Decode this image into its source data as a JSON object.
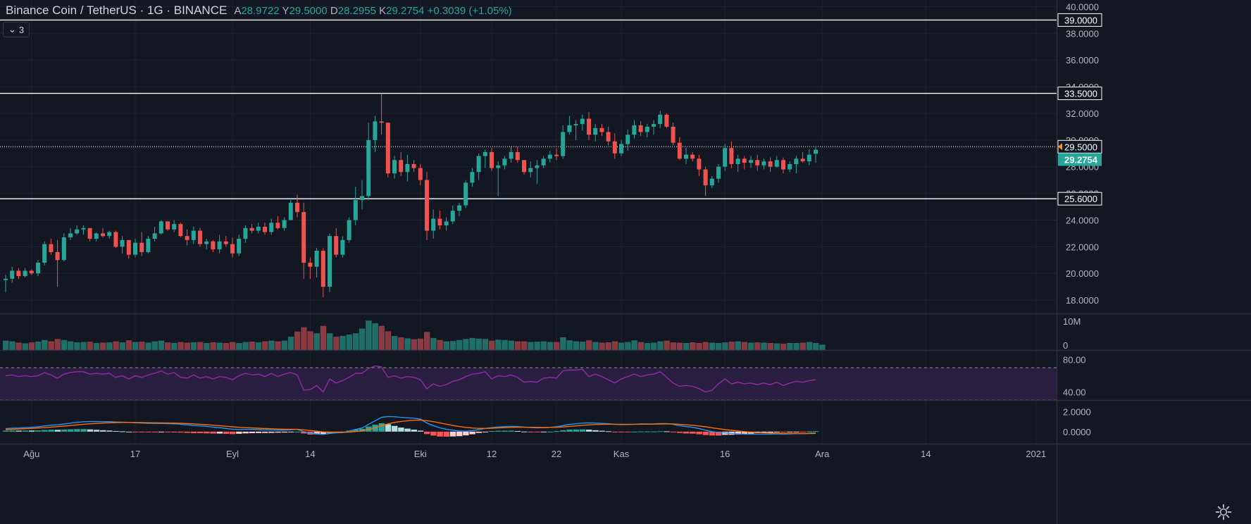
{
  "header": {
    "symbol": "Binance Coin / TetherUS · 1G · BINANCE",
    "open_label": "A",
    "open": "28.9722",
    "high_label": "Y",
    "high": "29.5000",
    "low_label": "D",
    "low": "28.2955",
    "close_label": "K",
    "close": "29.2754",
    "change": "+0.3039 (+1.05%)",
    "collapsed_count": "3"
  },
  "colors": {
    "background": "#131722",
    "grid": "#1e2230",
    "up": "#26a69a",
    "down": "#ef5350",
    "rsi_line": "#9c27b0",
    "rsi_band": "#2a1f40",
    "macd": "#2196f3",
    "signal": "#ff6d00",
    "hline": "#ffffff",
    "last_price_badge": "#26a69a",
    "marker": "#ff9800"
  },
  "chart_data": {
    "type": "candlestick",
    "price_axis": {
      "range": [
        17.0,
        40.5
      ],
      "ticks": [
        "40.0000",
        "38.0000",
        "36.0000",
        "34.0000",
        "32.0000",
        "30.0000",
        "28.0000",
        "26.0000",
        "24.0000",
        "22.0000",
        "20.0000",
        "18.0000"
      ]
    },
    "horizontal_lines": [
      {
        "value": 39.0,
        "label": "39.0000"
      },
      {
        "value": 33.5,
        "label": "33.5000"
      },
      {
        "value": 29.5,
        "label": "29.5000",
        "style": "dotted"
      },
      {
        "value": 25.6,
        "label": "25.6000"
      }
    ],
    "last_price": {
      "value": 29.2754,
      "label": "29.2754"
    },
    "x_axis_labels": [
      {
        "index": 4,
        "label": "Ağu"
      },
      {
        "index": 20,
        "label": "17"
      },
      {
        "index": 35,
        "label": "Eyl"
      },
      {
        "index": 47,
        "label": "14"
      },
      {
        "index": 64,
        "label": "Eki"
      },
      {
        "index": 75,
        "label": "12"
      },
      {
        "index": 85,
        "label": "22"
      },
      {
        "index": 95,
        "label": "Kas"
      },
      {
        "index": 111,
        "label": "16"
      },
      {
        "index": 126,
        "label": "Ara"
      },
      {
        "index": 142,
        "label": "14"
      },
      {
        "index": 159,
        "label": "2021"
      }
    ],
    "total_slots": 163,
    "ohlc": [
      [
        19.5,
        19.9,
        18.6,
        19.6
      ],
      [
        19.6,
        20.5,
        19.3,
        20.2
      ],
      [
        20.2,
        20.4,
        19.6,
        19.8
      ],
      [
        19.8,
        20.4,
        19.7,
        20.2
      ],
      [
        20.2,
        20.3,
        19.9,
        20.0
      ],
      [
        20.0,
        21.0,
        19.8,
        20.8
      ],
      [
        20.8,
        22.4,
        20.6,
        22.2
      ],
      [
        22.2,
        22.6,
        21.4,
        21.6
      ],
      [
        21.6,
        22.5,
        19.0,
        21.0
      ],
      [
        21.0,
        23.0,
        20.9,
        22.7
      ],
      [
        22.7,
        23.4,
        22.5,
        23.0
      ],
      [
        23.0,
        23.6,
        22.9,
        23.3
      ],
      [
        23.3,
        23.6,
        22.9,
        23.4
      ],
      [
        23.4,
        23.4,
        22.4,
        22.6
      ],
      [
        22.6,
        23.1,
        22.4,
        23.0
      ],
      [
        23.0,
        23.4,
        22.7,
        22.8
      ],
      [
        22.8,
        23.2,
        22.6,
        23.1
      ],
      [
        23.1,
        23.2,
        21.9,
        22.0
      ],
      [
        22.0,
        22.8,
        21.5,
        22.5
      ],
      [
        22.5,
        22.5,
        21.1,
        21.4
      ],
      [
        21.4,
        22.6,
        21.2,
        22.3
      ],
      [
        22.3,
        23.1,
        21.3,
        21.6
      ],
      [
        21.6,
        22.8,
        21.5,
        22.6
      ],
      [
        22.6,
        23.5,
        22.4,
        23.0
      ],
      [
        23.0,
        24.0,
        22.9,
        23.9
      ],
      [
        23.9,
        23.9,
        23.2,
        23.3
      ],
      [
        23.3,
        24.0,
        23.1,
        23.7
      ],
      [
        23.7,
        23.8,
        22.7,
        22.8
      ],
      [
        22.8,
        23.3,
        22.1,
        22.5
      ],
      [
        22.5,
        23.5,
        22.2,
        23.2
      ],
      [
        23.2,
        23.4,
        22.0,
        22.2
      ],
      [
        22.2,
        22.6,
        21.8,
        22.4
      ],
      [
        22.4,
        22.5,
        21.6,
        21.8
      ],
      [
        21.8,
        22.9,
        21.5,
        22.4
      ],
      [
        22.4,
        22.8,
        22.0,
        22.2
      ],
      [
        22.2,
        22.7,
        21.2,
        21.5
      ],
      [
        21.5,
        22.9,
        21.3,
        22.6
      ],
      [
        22.6,
        23.6,
        22.3,
        23.4
      ],
      [
        23.4,
        23.7,
        23.0,
        23.2
      ],
      [
        23.2,
        23.8,
        23.0,
        23.5
      ],
      [
        23.5,
        23.8,
        22.9,
        23.1
      ],
      [
        23.1,
        24.1,
        22.9,
        23.8
      ],
      [
        23.8,
        24.3,
        23.3,
        23.4
      ],
      [
        23.4,
        24.2,
        23.2,
        24.0
      ],
      [
        24.0,
        25.5,
        24.1,
        25.3
      ],
      [
        25.3,
        25.9,
        24.2,
        24.6
      ],
      [
        24.6,
        25.3,
        19.6,
        20.8
      ],
      [
        20.8,
        21.2,
        19.6,
        20.5
      ],
      [
        20.5,
        21.9,
        19.7,
        21.7
      ],
      [
        21.7,
        21.9,
        18.2,
        19.0
      ],
      [
        19.0,
        23.0,
        18.6,
        22.8
      ],
      [
        22.8,
        23.4,
        21.2,
        21.4
      ],
      [
        21.4,
        22.8,
        21.2,
        22.5
      ],
      [
        22.5,
        24.2,
        22.3,
        24.0
      ],
      [
        24.0,
        26.5,
        23.6,
        25.5
      ],
      [
        25.5,
        27.0,
        24.8,
        25.8
      ],
      [
        25.8,
        31.3,
        25.5,
        30.0
      ],
      [
        30.0,
        31.8,
        29.1,
        31.4
      ],
      [
        31.4,
        33.5,
        30.4,
        31.3
      ],
      [
        31.3,
        31.3,
        27.2,
        27.5
      ],
      [
        27.5,
        28.8,
        27.1,
        28.5
      ],
      [
        28.5,
        29.1,
        27.3,
        27.6
      ],
      [
        27.6,
        28.9,
        26.9,
        28.2
      ],
      [
        28.2,
        28.5,
        27.6,
        27.9
      ],
      [
        27.9,
        28.2,
        26.6,
        27.0
      ],
      [
        27.0,
        27.6,
        22.5,
        23.2
      ],
      [
        23.2,
        24.8,
        22.6,
        24.1
      ],
      [
        24.1,
        24.7,
        23.3,
        23.6
      ],
      [
        23.6,
        24.2,
        23.2,
        23.9
      ],
      [
        23.9,
        25.1,
        23.7,
        24.7
      ],
      [
        24.7,
        25.3,
        24.3,
        25.1
      ],
      [
        25.1,
        27.0,
        24.9,
        26.8
      ],
      [
        26.8,
        27.9,
        26.5,
        27.6
      ],
      [
        27.6,
        29.0,
        27.0,
        28.8
      ],
      [
        28.8,
        29.3,
        27.9,
        29.1
      ],
      [
        29.1,
        29.4,
        27.7,
        27.9
      ],
      [
        27.9,
        28.4,
        25.8,
        28.1
      ],
      [
        28.1,
        28.8,
        27.8,
        28.6
      ],
      [
        28.6,
        29.5,
        28.3,
        29.1
      ],
      [
        29.1,
        29.5,
        28.3,
        28.5
      ],
      [
        28.5,
        28.5,
        27.4,
        27.6
      ],
      [
        27.6,
        28.4,
        27.2,
        27.9
      ],
      [
        27.9,
        28.5,
        26.7,
        28.1
      ],
      [
        28.1,
        28.8,
        27.9,
        28.6
      ],
      [
        28.6,
        29.2,
        28.3,
        28.9
      ],
      [
        28.9,
        29.4,
        28.5,
        28.8
      ],
      [
        28.8,
        31.1,
        28.6,
        30.6
      ],
      [
        30.6,
        31.8,
        30.4,
        31.1
      ],
      [
        31.1,
        31.5,
        30.0,
        31.2
      ],
      [
        31.2,
        31.9,
        30.7,
        31.6
      ],
      [
        31.6,
        32.1,
        30.0,
        30.4
      ],
      [
        30.4,
        31.2,
        29.9,
        30.9
      ],
      [
        30.9,
        31.2,
        30.3,
        30.6
      ],
      [
        30.6,
        31.0,
        29.6,
        29.9
      ],
      [
        29.9,
        30.5,
        28.6,
        29.0
      ],
      [
        29.0,
        30.0,
        28.8,
        29.7
      ],
      [
        29.7,
        30.8,
        29.2,
        30.4
      ],
      [
        30.4,
        31.5,
        30.1,
        31.1
      ],
      [
        31.1,
        31.4,
        30.3,
        30.6
      ],
      [
        30.6,
        31.2,
        30.2,
        31.0
      ],
      [
        31.0,
        31.5,
        30.4,
        31.2
      ],
      [
        31.2,
        32.2,
        30.9,
        31.9
      ],
      [
        31.9,
        32.0,
        30.9,
        31.0
      ],
      [
        31.0,
        31.3,
        29.6,
        29.8
      ],
      [
        29.8,
        30.2,
        28.5,
        28.6
      ],
      [
        28.6,
        29.4,
        28.2,
        28.9
      ],
      [
        28.9,
        29.1,
        28.4,
        28.6
      ],
      [
        28.6,
        28.9,
        27.3,
        27.8
      ],
      [
        27.8,
        28.0,
        25.8,
        26.6
      ],
      [
        26.6,
        27.3,
        26.4,
        27.1
      ],
      [
        27.1,
        28.2,
        26.8,
        28.0
      ],
      [
        28.0,
        29.7,
        27.7,
        29.4
      ],
      [
        29.4,
        29.9,
        27.9,
        28.2
      ],
      [
        28.2,
        28.9,
        27.6,
        28.6
      ],
      [
        28.6,
        28.8,
        27.8,
        28.3
      ],
      [
        28.3,
        28.8,
        27.9,
        28.5
      ],
      [
        28.5,
        28.9,
        27.7,
        28.1
      ],
      [
        28.1,
        28.6,
        27.8,
        28.4
      ],
      [
        28.4,
        28.7,
        27.6,
        28.0
      ],
      [
        28.0,
        28.8,
        27.9,
        28.5
      ],
      [
        28.5,
        28.7,
        27.5,
        27.8
      ],
      [
        27.8,
        28.4,
        27.6,
        28.2
      ],
      [
        28.2,
        28.8,
        27.5,
        28.6
      ],
      [
        28.6,
        29.1,
        28.3,
        28.4
      ],
      [
        28.4,
        29.3,
        28.1,
        28.9
      ],
      [
        28.97,
        29.5,
        28.2955,
        29.2754
      ]
    ],
    "volume": {
      "label_top": "10M",
      "label_zero": "0",
      "max": 10.5,
      "values": [
        2.8,
        2.6,
        2.2,
        2.0,
        2.3,
        2.5,
        3.0,
        2.6,
        3.3,
        3.0,
        2.6,
        2.3,
        2.4,
        2.5,
        2.1,
        2.2,
        2.3,
        2.6,
        2.3,
        2.9,
        2.4,
        2.5,
        2.2,
        2.6,
        2.8,
        2.3,
        2.1,
        2.4,
        2.2,
        2.3,
        2.4,
        2.1,
        2.3,
        2.2,
        2.1,
        2.4,
        2.1,
        2.4,
        2.5,
        2.3,
        2.6,
        2.8,
        2.6,
        2.8,
        4.0,
        5.5,
        6.8,
        5.6,
        5.0,
        7.2,
        5.0,
        4.0,
        4.2,
        4.6,
        5.0,
        6.4,
        8.8,
        8.0,
        7.2,
        5.6,
        4.2,
        3.8,
        3.5,
        3.2,
        3.4,
        5.4,
        3.6,
        3.0,
        2.6,
        2.7,
        3.0,
        3.3,
        3.6,
        3.4,
        3.3,
        2.8,
        3.1,
        3.0,
        2.8,
        2.6,
        2.6,
        2.4,
        2.5,
        2.6,
        2.4,
        2.4,
        3.8,
        2.9,
        2.6,
        2.5,
        2.9,
        2.4,
        2.2,
        2.3,
        2.6,
        2.2,
        2.4,
        2.9,
        2.4,
        2.1,
        2.2,
        2.6,
        2.8,
        2.3,
        2.2,
        2.1,
        2.3,
        2.1,
        2.4,
        2.2,
        2.1,
        2.3,
        2.5,
        2.6,
        2.4,
        2.2,
        2.3,
        2.2,
        2.1,
        2.0,
        1.9,
        2.1,
        2.1,
        2.2,
        2.4,
        2.1,
        1.6
      ]
    },
    "rsi": {
      "range": [
        30,
        90
      ],
      "band": [
        30,
        70
      ],
      "ticks": [
        "80.00",
        "40.00"
      ],
      "values": [
        60,
        61,
        59,
        60,
        59,
        60,
        64,
        61,
        57,
        62,
        64,
        65,
        65,
        62,
        63,
        62,
        63,
        58,
        60,
        56,
        60,
        58,
        61,
        63,
        66,
        62,
        64,
        58,
        57,
        61,
        57,
        59,
        56,
        59,
        58,
        55,
        60,
        63,
        61,
        62,
        59,
        63,
        59,
        62,
        64,
        61,
        42,
        43,
        48,
        40,
        56,
        51,
        54,
        58,
        63,
        63,
        69,
        72,
        71,
        58,
        60,
        57,
        59,
        58,
        55,
        44,
        50,
        47,
        49,
        53,
        55,
        59,
        62,
        63,
        65,
        56,
        60,
        59,
        61,
        58,
        52,
        53,
        52,
        57,
        58,
        57,
        66,
        67,
        67,
        68,
        59,
        62,
        59,
        55,
        51,
        56,
        59,
        62,
        59,
        61,
        62,
        65,
        58,
        51,
        47,
        48,
        47,
        44,
        40,
        42,
        50,
        56,
        50,
        52,
        50,
        51,
        49,
        51,
        49,
        52,
        48,
        51,
        53,
        52,
        54,
        55
      ]
    },
    "macd": {
      "range": [
        -1.2,
        3.0
      ],
      "ticks": [
        "2.0000",
        "0.0000"
      ],
      "macd": [
        0.3,
        0.34,
        0.36,
        0.4,
        0.43,
        0.48,
        0.56,
        0.64,
        0.68,
        0.76,
        0.84,
        0.92,
        0.98,
        1.0,
        1.0,
        0.99,
        0.99,
        0.96,
        0.94,
        0.91,
        0.88,
        0.85,
        0.83,
        0.82,
        0.82,
        0.8,
        0.77,
        0.74,
        0.68,
        0.62,
        0.58,
        0.52,
        0.45,
        0.4,
        0.32,
        0.24,
        0.22,
        0.23,
        0.22,
        0.2,
        0.18,
        0.17,
        0.16,
        0.15,
        0.19,
        0.23,
        0.0,
        -0.18,
        -0.22,
        -0.28,
        -0.18,
        -0.12,
        -0.09,
        0.05,
        0.22,
        0.36,
        0.72,
        1.08,
        1.42,
        1.5,
        1.48,
        1.42,
        1.38,
        1.33,
        1.25,
        0.85,
        0.6,
        0.38,
        0.24,
        0.14,
        0.06,
        0.05,
        0.1,
        0.2,
        0.32,
        0.4,
        0.46,
        0.5,
        0.52,
        0.5,
        0.45,
        0.41,
        0.38,
        0.39,
        0.42,
        0.48,
        0.6,
        0.72,
        0.78,
        0.85,
        0.87,
        0.85,
        0.82,
        0.78,
        0.72,
        0.7,
        0.7,
        0.73,
        0.76,
        0.76,
        0.77,
        0.8,
        0.8,
        0.72,
        0.6,
        0.5,
        0.43,
        0.3,
        0.14,
        0.0,
        -0.1,
        -0.12,
        -0.18,
        -0.22,
        -0.24,
        -0.25,
        -0.24,
        -0.25,
        -0.24,
        -0.22,
        -0.24,
        -0.22,
        -0.2,
        -0.21,
        -0.16,
        -0.12
      ],
      "signal": [
        0.2,
        0.23,
        0.26,
        0.29,
        0.32,
        0.36,
        0.4,
        0.45,
        0.5,
        0.55,
        0.61,
        0.67,
        0.73,
        0.78,
        0.82,
        0.85,
        0.88,
        0.9,
        0.91,
        0.91,
        0.91,
        0.9,
        0.89,
        0.88,
        0.87,
        0.86,
        0.85,
        0.83,
        0.8,
        0.77,
        0.73,
        0.69,
        0.64,
        0.59,
        0.54,
        0.48,
        0.43,
        0.4,
        0.37,
        0.34,
        0.31,
        0.29,
        0.26,
        0.24,
        0.23,
        0.23,
        0.18,
        0.11,
        0.05,
        -0.02,
        -0.05,
        -0.06,
        -0.07,
        -0.05,
        0.01,
        0.08,
        0.21,
        0.38,
        0.59,
        0.77,
        0.91,
        1.01,
        1.08,
        1.13,
        1.15,
        1.09,
        0.99,
        0.87,
        0.74,
        0.62,
        0.51,
        0.42,
        0.36,
        0.33,
        0.33,
        0.34,
        0.37,
        0.4,
        0.42,
        0.44,
        0.44,
        0.43,
        0.42,
        0.41,
        0.42,
        0.43,
        0.47,
        0.52,
        0.57,
        0.63,
        0.67,
        0.71,
        0.73,
        0.74,
        0.74,
        0.73,
        0.73,
        0.73,
        0.74,
        0.74,
        0.75,
        0.76,
        0.77,
        0.76,
        0.73,
        0.68,
        0.63,
        0.56,
        0.48,
        0.38,
        0.29,
        0.2,
        0.13,
        0.06,
        0.0,
        -0.05,
        -0.09,
        -0.12,
        -0.14,
        -0.16,
        -0.18,
        -0.19,
        -0.19,
        -0.19,
        -0.19,
        -0.17
      ]
    }
  }
}
